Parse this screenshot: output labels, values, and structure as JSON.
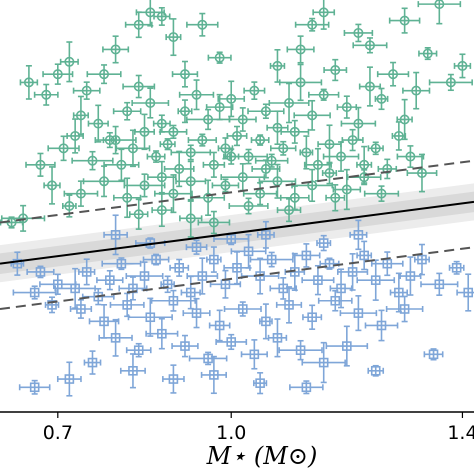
{
  "chart_data": {
    "type": "scatter",
    "xlabel": "M⋆ (M⊙)",
    "ylabel": "",
    "x_ticks": [
      "0.7",
      "1.0",
      "1.4"
    ],
    "xlim": [
      0.6,
      1.42
    ],
    "ylim": [
      0,
      1
    ],
    "grid": false,
    "colors": {
      "green": "#5fb294",
      "blue": "#7fa6d8",
      "fit_line": "#000000",
      "bound_line": "#555555",
      "band": "#d9d9d9"
    },
    "lines": [
      {
        "style": "solid",
        "x": [
          0.6,
          1.42
        ],
        "y": [
          0.36,
          0.51
        ]
      },
      {
        "style": "dashed",
        "x": [
          0.6,
          1.42
        ],
        "y": [
          0.46,
          0.61
        ]
      },
      {
        "style": "dashed",
        "x": [
          0.6,
          1.42
        ],
        "y": [
          0.25,
          0.4
        ]
      }
    ],
    "series": [
      {
        "marker": "circle",
        "points": [
          [
            0.86,
            0.97
          ],
          [
            0.88,
            0.96
          ],
          [
            0.84,
            0.94
          ],
          [
            0.9,
            0.91
          ],
          [
            0.95,
            0.94
          ],
          [
            1.16,
            0.97
          ],
          [
            1.14,
            0.94
          ],
          [
            1.22,
            0.92
          ],
          [
            1.24,
            0.89
          ],
          [
            1.3,
            0.95
          ],
          [
            1.34,
            0.87
          ],
          [
            1.36,
            0.99
          ],
          [
            1.4,
            0.84
          ],
          [
            1.38,
            0.8
          ],
          [
            0.8,
            0.88
          ],
          [
            0.78,
            0.82
          ],
          [
            0.72,
            0.85
          ],
          [
            0.75,
            0.78
          ],
          [
            0.7,
            0.82
          ],
          [
            0.65,
            0.8
          ],
          [
            0.68,
            0.77
          ],
          [
            0.74,
            0.72
          ],
          [
            0.77,
            0.7
          ],
          [
            0.82,
            0.73
          ],
          [
            0.84,
            0.79
          ],
          [
            0.86,
            0.75
          ],
          [
            0.88,
            0.7
          ],
          [
            0.9,
            0.68
          ],
          [
            0.92,
            0.73
          ],
          [
            0.94,
            0.77
          ],
          [
            0.96,
            0.71
          ],
          [
            0.98,
            0.74
          ],
          [
            1.0,
            0.76
          ],
          [
            1.02,
            0.71
          ],
          [
            1.04,
            0.78
          ],
          [
            1.06,
            0.73
          ],
          [
            1.08,
            0.69
          ],
          [
            1.1,
            0.75
          ],
          [
            1.12,
            0.8
          ],
          [
            1.14,
            0.72
          ],
          [
            1.16,
            0.77
          ],
          [
            1.18,
            0.83
          ],
          [
            1.2,
            0.74
          ],
          [
            1.22,
            0.7
          ],
          [
            1.24,
            0.79
          ],
          [
            1.26,
            0.76
          ],
          [
            1.28,
            0.82
          ],
          [
            1.3,
            0.71
          ],
          [
            1.32,
            0.78
          ],
          [
            0.71,
            0.64
          ],
          [
            0.73,
            0.67
          ],
          [
            0.76,
            0.61
          ],
          [
            0.79,
            0.66
          ],
          [
            0.81,
            0.6
          ],
          [
            0.83,
            0.64
          ],
          [
            0.85,
            0.68
          ],
          [
            0.87,
            0.62
          ],
          [
            0.89,
            0.65
          ],
          [
            0.91,
            0.59
          ],
          [
            0.93,
            0.63
          ],
          [
            0.95,
            0.66
          ],
          [
            0.97,
            0.6
          ],
          [
            0.99,
            0.64
          ],
          [
            1.01,
            0.67
          ],
          [
            1.03,
            0.62
          ],
          [
            1.05,
            0.66
          ],
          [
            1.07,
            0.61
          ],
          [
            1.09,
            0.64
          ],
          [
            1.11,
            0.68
          ],
          [
            1.13,
            0.63
          ],
          [
            1.15,
            0.6
          ],
          [
            1.17,
            0.65
          ],
          [
            1.19,
            0.62
          ],
          [
            1.21,
            0.66
          ],
          [
            1.23,
            0.6
          ],
          [
            1.25,
            0.64
          ],
          [
            1.27,
            0.59
          ],
          [
            1.29,
            0.67
          ],
          [
            1.31,
            0.62
          ],
          [
            1.33,
            0.58
          ],
          [
            0.67,
            0.6
          ],
          [
            0.69,
            0.55
          ],
          [
            0.74,
            0.53
          ],
          [
            0.78,
            0.56
          ],
          [
            0.82,
            0.52
          ],
          [
            0.85,
            0.55
          ],
          [
            0.88,
            0.57
          ],
          [
            0.9,
            0.53
          ],
          [
            0.93,
            0.56
          ],
          [
            0.96,
            0.52
          ],
          [
            0.99,
            0.55
          ],
          [
            1.02,
            0.57
          ],
          [
            1.05,
            0.53
          ],
          [
            1.08,
            0.56
          ],
          [
            1.11,
            0.52
          ],
          [
            1.14,
            0.55
          ],
          [
            1.17,
            0.58
          ],
          [
            1.2,
            0.54
          ],
          [
            1.23,
            0.57
          ],
          [
            1.26,
            0.53
          ],
          [
            1.18,
            0.52
          ],
          [
            0.62,
            0.46
          ],
          [
            0.64,
            0.47
          ],
          [
            0.72,
            0.5
          ],
          [
            0.84,
            0.48
          ],
          [
            0.88,
            0.49
          ],
          [
            0.93,
            0.47
          ],
          [
            0.97,
            0.46
          ],
          [
            1.03,
            0.5
          ],
          [
            1.1,
            0.49
          ],
          [
            0.8,
            0.66
          ],
          [
            1.0,
            0.62
          ],
          [
            1.06,
            0.59
          ],
          [
            0.92,
            0.82
          ],
          [
            0.98,
            0.86
          ],
          [
            1.08,
            0.84
          ],
          [
            1.12,
            0.88
          ]
        ]
      },
      {
        "marker": "square",
        "points": [
          [
            0.63,
            0.36
          ],
          [
            0.67,
            0.34
          ],
          [
            0.7,
            0.31
          ],
          [
            0.66,
            0.29
          ],
          [
            0.69,
            0.26
          ],
          [
            0.73,
            0.3
          ],
          [
            0.75,
            0.34
          ],
          [
            0.77,
            0.28
          ],
          [
            0.79,
            0.32
          ],
          [
            0.81,
            0.36
          ],
          [
            0.83,
            0.3
          ],
          [
            0.85,
            0.33
          ],
          [
            0.87,
            0.37
          ],
          [
            0.89,
            0.31
          ],
          [
            0.91,
            0.35
          ],
          [
            0.93,
            0.29
          ],
          [
            0.95,
            0.33
          ],
          [
            0.97,
            0.37
          ],
          [
            0.99,
            0.31
          ],
          [
            1.01,
            0.35
          ],
          [
            1.03,
            0.39
          ],
          [
            1.05,
            0.33
          ],
          [
            1.07,
            0.37
          ],
          [
            1.09,
            0.3
          ],
          [
            1.11,
            0.34
          ],
          [
            1.13,
            0.38
          ],
          [
            1.15,
            0.32
          ],
          [
            1.17,
            0.36
          ],
          [
            1.19,
            0.3
          ],
          [
            1.21,
            0.34
          ],
          [
            1.23,
            0.38
          ],
          [
            1.25,
            0.32
          ],
          [
            1.27,
            0.36
          ],
          [
            1.29,
            0.29
          ],
          [
            1.31,
            0.33
          ],
          [
            1.33,
            0.37
          ],
          [
            1.36,
            0.31
          ],
          [
            1.39,
            0.35
          ],
          [
            1.41,
            0.29
          ],
          [
            0.74,
            0.25
          ],
          [
            0.78,
            0.22
          ],
          [
            0.82,
            0.26
          ],
          [
            0.86,
            0.23
          ],
          [
            0.9,
            0.27
          ],
          [
            0.94,
            0.24
          ],
          [
            0.98,
            0.21
          ],
          [
            1.02,
            0.25
          ],
          [
            1.06,
            0.22
          ],
          [
            1.1,
            0.26
          ],
          [
            1.14,
            0.23
          ],
          [
            1.18,
            0.27
          ],
          [
            1.22,
            0.24
          ],
          [
            1.26,
            0.21
          ],
          [
            1.3,
            0.25
          ],
          [
            0.8,
            0.18
          ],
          [
            0.84,
            0.15
          ],
          [
            0.88,
            0.19
          ],
          [
            0.92,
            0.16
          ],
          [
            0.96,
            0.13
          ],
          [
            1.0,
            0.17
          ],
          [
            1.04,
            0.14
          ],
          [
            1.08,
            0.18
          ],
          [
            1.12,
            0.15
          ],
          [
            1.16,
            0.12
          ],
          [
            1.2,
            0.16
          ],
          [
            0.76,
            0.12
          ],
          [
            0.83,
            0.1
          ],
          [
            0.9,
            0.08
          ],
          [
            0.97,
            0.09
          ],
          [
            1.05,
            0.07
          ],
          [
            1.13,
            0.06
          ],
          [
            1.25,
            0.1
          ],
          [
            1.35,
            0.14
          ],
          [
            0.72,
            0.08
          ],
          [
            0.66,
            0.06
          ],
          [
            0.94,
            0.4
          ],
          [
            1.0,
            0.42
          ],
          [
            1.06,
            0.43
          ],
          [
            0.86,
            0.41
          ],
          [
            1.16,
            0.41
          ],
          [
            1.22,
            0.43
          ],
          [
            0.8,
            0.43
          ]
        ]
      }
    ]
  }
}
